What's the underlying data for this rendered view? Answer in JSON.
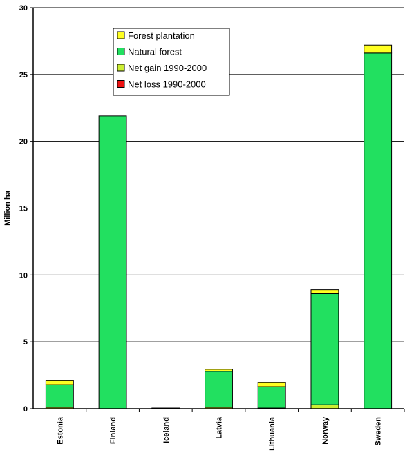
{
  "chart_data": {
    "type": "bar",
    "stacked": true,
    "ylabel": "Million ha",
    "xlabel": "",
    "ylim": [
      0,
      30
    ],
    "yticks": [
      0,
      5,
      10,
      15,
      20,
      25,
      30
    ],
    "grid": true,
    "legend_position": "top-center",
    "categories": [
      "Estonia",
      "Finland",
      "Iceland",
      "Latvia",
      "Lithuania",
      "Norway",
      "Sweden"
    ],
    "series": [
      {
        "name": "Net loss 1990-2000",
        "color": "#ee1111",
        "values": [
          0,
          0,
          0,
          0,
          0,
          0,
          0
        ]
      },
      {
        "name": "Net gain 1990-2000",
        "color": "#ccee33",
        "values": [
          0.1,
          0,
          0.03,
          0.1,
          0.05,
          0.3,
          0
        ]
      },
      {
        "name": "Natural forest",
        "color": "#22e060",
        "values": [
          1.7,
          21.9,
          0.02,
          2.7,
          1.6,
          8.3,
          26.6
        ]
      },
      {
        "name": "Forest plantation",
        "color": "#ffff22",
        "values": [
          0.3,
          0,
          0,
          0.15,
          0.3,
          0.3,
          0.6
        ]
      }
    ]
  }
}
